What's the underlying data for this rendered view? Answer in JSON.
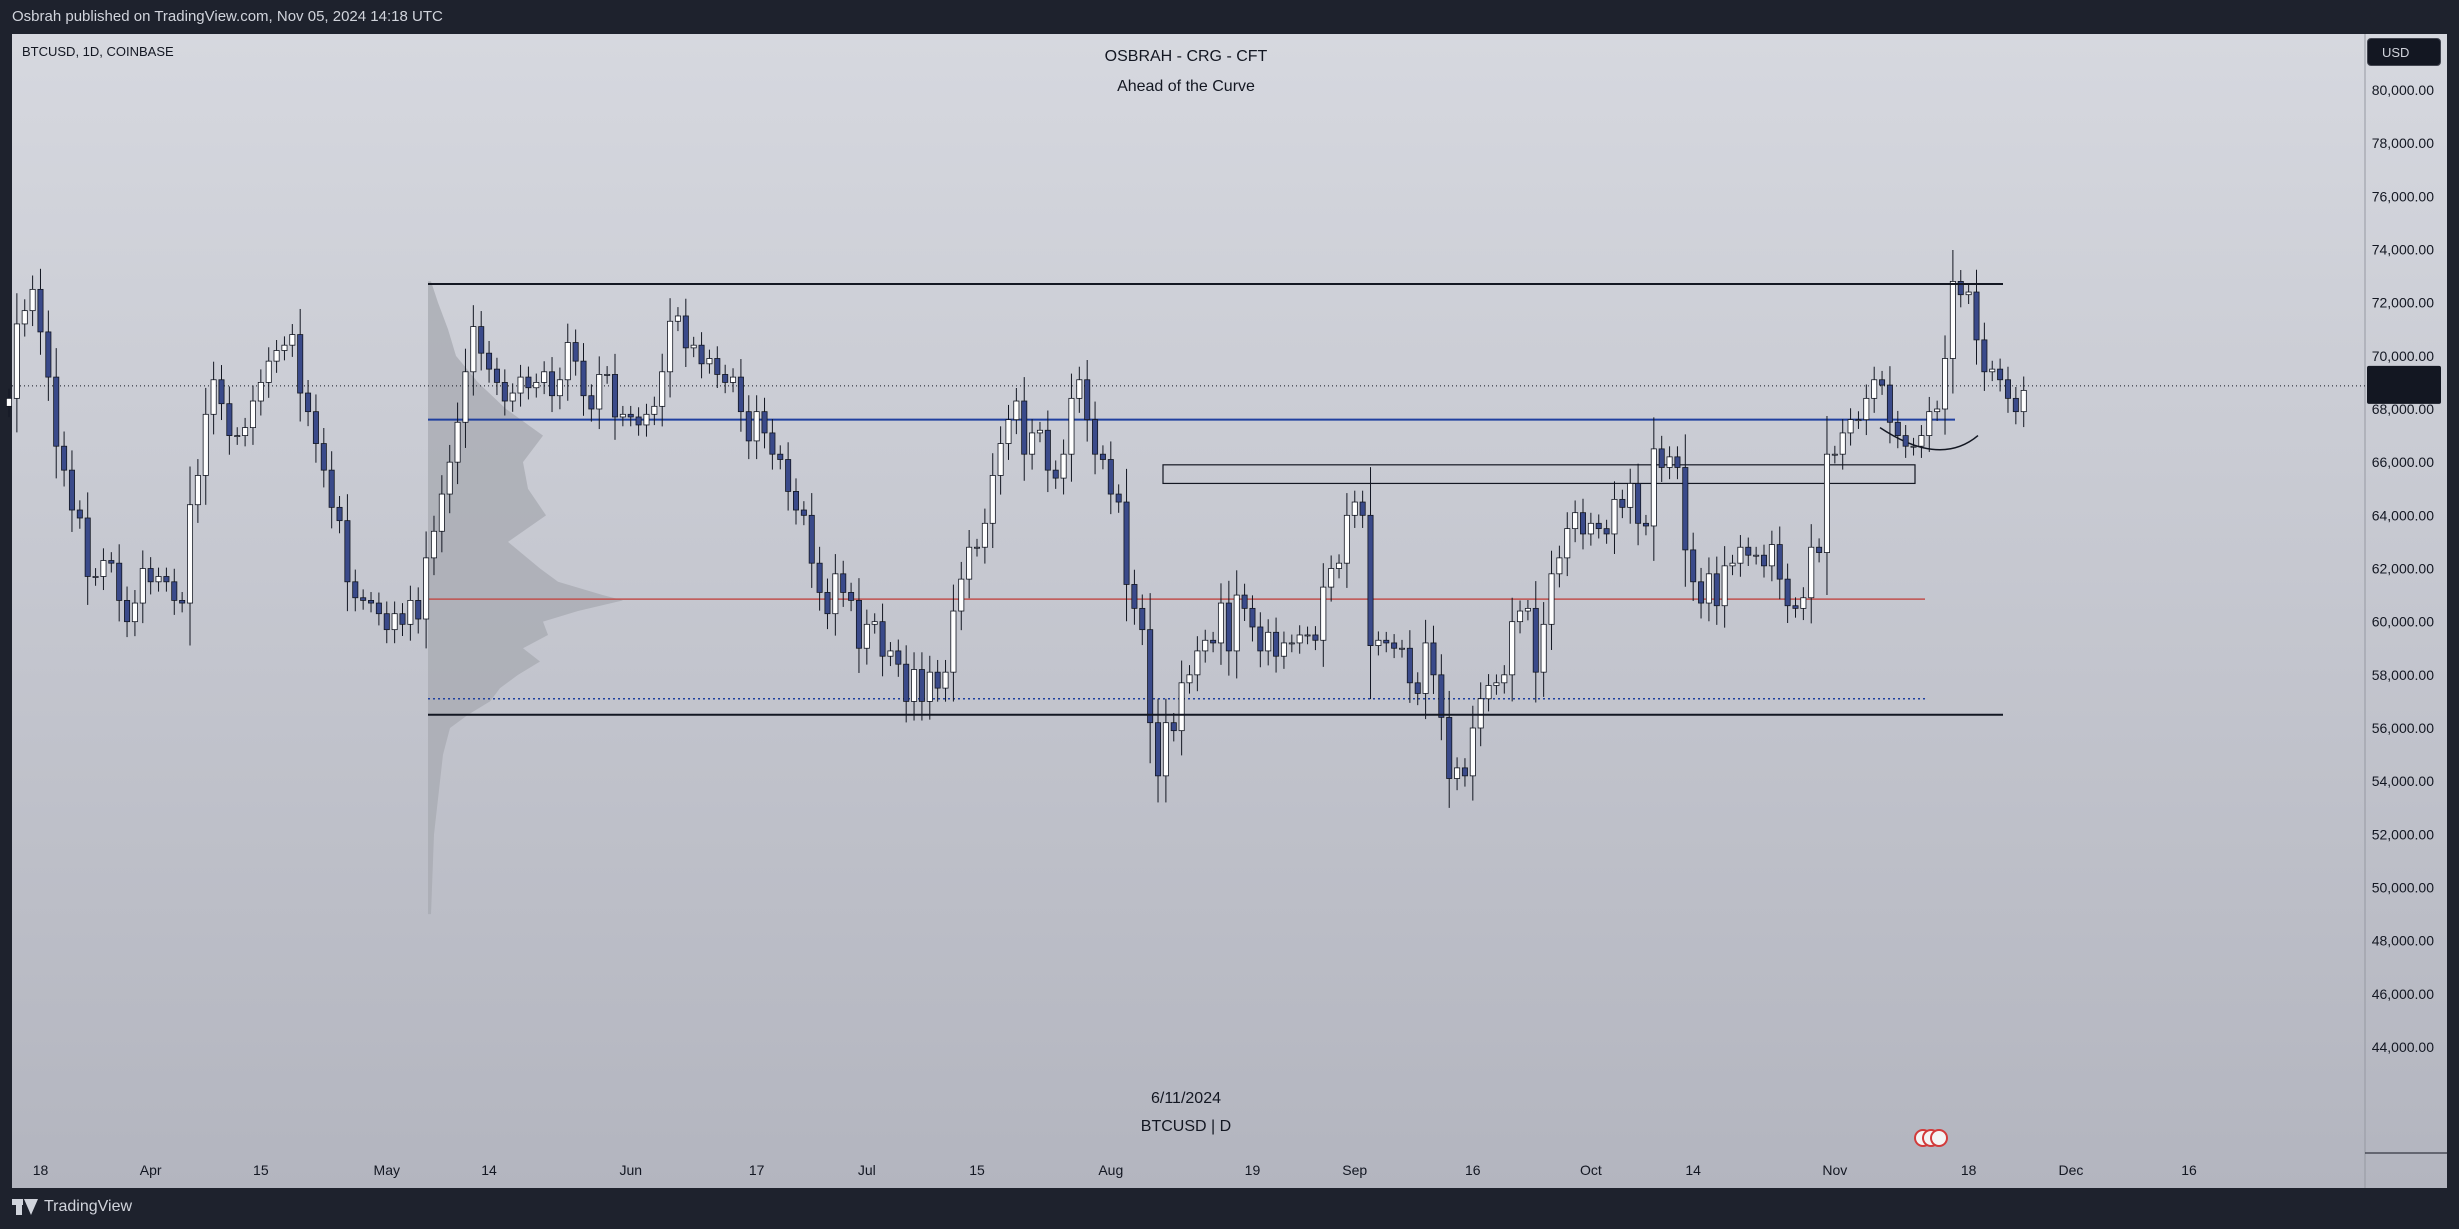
{
  "header": {
    "published": "Osbrah published on TradingView.com, Nov 05, 2024 14:18 UTC"
  },
  "footer": {
    "logo_text": "TradingView"
  },
  "chart_header": {
    "symbol": "BTCUSD, 1D, COINBASE",
    "line1": "OSBRAH - CRG - CFT",
    "line2": "Ahead of the Curve"
  },
  "watermark": {
    "date": "6/11/2024",
    "symbol": "BTCUSD | D"
  },
  "currency_button": "USD",
  "colors": {
    "up_body": "#ffffff",
    "down_body": "#3a4a8a",
    "wick": "#131722",
    "blue_line": "#1f3f9f",
    "red_line": "#c0504d",
    "volume_profile": "#a9abb3"
  },
  "chart_data": {
    "type": "candlestick",
    "y_axis": {
      "min": 42000,
      "max": 82000,
      "ticks": [
        "44,000.00",
        "46,000.00",
        "48,000.00",
        "50,000.00",
        "52,000.00",
        "54,000.00",
        "56,000.00",
        "58,000.00",
        "60,000.00",
        "62,000.00",
        "64,000.00",
        "66,000.00",
        "68,000.00",
        "70,000.00",
        "72,000.00",
        "74,000.00",
        "76,000.00",
        "78,000.00",
        "80,000.00"
      ]
    },
    "x_axis": {
      "start": "2024-03-14",
      "ticks": [
        {
          "label": "18",
          "date": "2024-03-18"
        },
        {
          "label": "Apr",
          "date": "2024-04-01"
        },
        {
          "label": "15",
          "date": "2024-04-15"
        },
        {
          "label": "May",
          "date": "2024-05-01"
        },
        {
          "label": "14",
          "date": "2024-05-14"
        },
        {
          "label": "Jun",
          "date": "2024-06-01"
        },
        {
          "label": "17",
          "date": "2024-06-17"
        },
        {
          "label": "Jul",
          "date": "2024-07-01"
        },
        {
          "label": "15",
          "date": "2024-07-15"
        },
        {
          "label": "Aug",
          "date": "2024-08-01"
        },
        {
          "label": "19",
          "date": "2024-08-19"
        },
        {
          "label": "Sep",
          "date": "2024-09-01"
        },
        {
          "label": "16",
          "date": "2024-09-16"
        },
        {
          "label": "Oct",
          "date": "2024-10-01"
        },
        {
          "label": "14",
          "date": "2024-10-14"
        },
        {
          "label": "Nov",
          "date": "2024-11-01"
        },
        {
          "label": "18",
          "date": "2024-11-18"
        },
        {
          "label": "Dec",
          "date": "2024-12-01"
        },
        {
          "label": "16",
          "date": "2024-12-16"
        }
      ]
    },
    "closes": [
      68400,
      71200,
      71700,
      72500,
      70900,
      69200,
      66600,
      65700,
      64200,
      63900,
      61700,
      61700,
      62300,
      62200,
      60800,
      60000,
      60700,
      62000,
      61500,
      61700,
      61500,
      60800,
      60700,
      64400,
      65500,
      67800,
      69100,
      68200,
      67000,
      67000,
      67300,
      68300,
      69000,
      69800,
      70200,
      70400,
      70800,
      68600,
      67900,
      66700,
      65700,
      64300,
      63800,
      61500,
      60900,
      60800,
      60700,
      60300,
      59700,
      60300,
      59900,
      60800,
      60100,
      62400,
      63400,
      64800,
      66000,
      67500,
      69400,
      71100,
      70100,
      69500,
      69000,
      68300,
      68600,
      69200,
      68800,
      69000,
      69400,
      68500,
      69100,
      70500,
      69800,
      68500,
      68000,
      69300,
      69300,
      67700,
      67800,
      67700,
      67400,
      67800,
      68100,
      69400,
      71300,
      71500,
      70300,
      70400,
      69700,
      69900,
      69300,
      69000,
      69200,
      67900,
      66800,
      67900,
      67100,
      66300,
      66100,
      64900,
      64200,
      64000,
      62200,
      61100,
      60300,
      61800,
      61100,
      60800,
      59000,
      59900,
      60000,
      58700,
      58900,
      58400,
      57000,
      58200,
      57000,
      58100,
      57500,
      58100,
      60400,
      61600,
      62800,
      62800,
      63700,
      65500,
      66700,
      67600,
      68300,
      66300,
      67100,
      67200,
      65700,
      65400,
      66300,
      68400,
      69100,
      67600,
      66300,
      66100,
      64800,
      64500,
      61400,
      60500,
      59700,
      56200,
      54200,
      56200,
      55900,
      57700,
      58000,
      58900,
      59300,
      59200,
      60700,
      58900,
      61000,
      60500,
      59800,
      58900,
      59600,
      58700,
      59200,
      59200,
      59500,
      59500,
      59300,
      61300,
      62000,
      62200,
      64000,
      64500,
      64000,
      59100,
      59300,
      59200,
      59000,
      59000,
      57700,
      57300,
      59200,
      58000,
      56400,
      54100,
      54500,
      54200,
      56000,
      57100,
      57600,
      57700,
      58000,
      60000,
      60400,
      60500,
      58100,
      59900,
      61800,
      62400,
      63500,
      64100,
      63300,
      63700,
      63500,
      63300,
      64600,
      64300,
      65200,
      63700,
      63600,
      66500,
      65800,
      66200,
      65800,
      62700,
      61500,
      60700,
      61800,
      60600,
      62100,
      62200,
      62800,
      62500,
      62500,
      62100,
      62900,
      61600,
      60600,
      60500,
      60900,
      62800,
      62600,
      66300,
      66300,
      67100,
      67600,
      67600,
      68400,
      69100,
      68900,
      67500,
      67000,
      66600,
      66600,
      67000,
      67900,
      68000,
      69900,
      72800,
      72300,
      72400,
      70600,
      69400,
      69500,
      69100,
      68400,
      67900,
      68700
    ]
  }
}
